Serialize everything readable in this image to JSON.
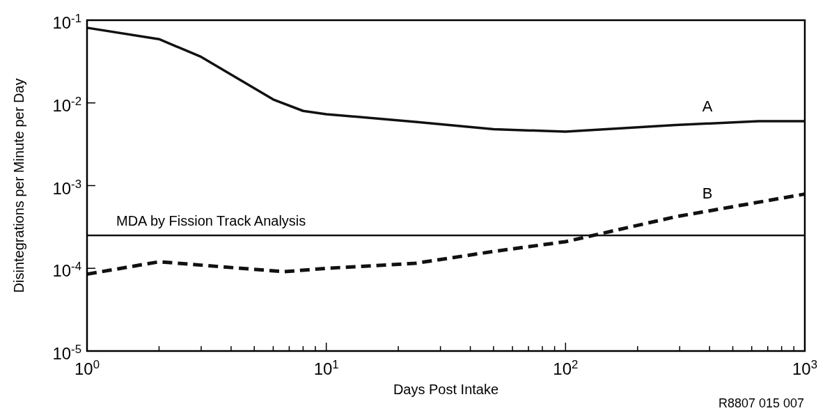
{
  "chart_data": {
    "type": "line",
    "xlabel": "Days Post Intake",
    "ylabel": "Disintegrations per Minute per Day",
    "log": "xy",
    "xlim": [
      1,
      1000
    ],
    "ylim": [
      1e-05,
      0.1
    ],
    "xticks": [
      {
        "value": 1,
        "label": "10$^{0}$"
      },
      {
        "value": 2,
        "label": null
      },
      {
        "value": 3,
        "label": null
      },
      {
        "value": 4,
        "label": null
      },
      {
        "value": 5,
        "label": null
      },
      {
        "value": 6,
        "label": null
      },
      {
        "value": 7,
        "label": null
      },
      {
        "value": 8,
        "label": null
      },
      {
        "value": 9,
        "label": null
      },
      {
        "value": 10,
        "label": "10$^{1}$"
      },
      {
        "value": 20,
        "label": null
      },
      {
        "value": 30,
        "label": null
      },
      {
        "value": 40,
        "label": null
      },
      {
        "value": 50,
        "label": null
      },
      {
        "value": 60,
        "label": null
      },
      {
        "value": 70,
        "label": null
      },
      {
        "value": 80,
        "label": null
      },
      {
        "value": 90,
        "label": null
      },
      {
        "value": 100,
        "label": "10$^{2}$"
      },
      {
        "value": 200,
        "label": null
      },
      {
        "value": 300,
        "label": null
      },
      {
        "value": 400,
        "label": null
      },
      {
        "value": 500,
        "label": null
      },
      {
        "value": 600,
        "label": null
      },
      {
        "value": 700,
        "label": null
      },
      {
        "value": 800,
        "label": null
      },
      {
        "value": 900,
        "label": null
      },
      {
        "value": 1000,
        "label": "10$^{3}$"
      }
    ],
    "yticks": [
      {
        "value": 1e-05,
        "label": "10$^{-5}$"
      },
      {
        "value": 0.0001,
        "label": "10$^{-4}$"
      },
      {
        "value": 0.001,
        "label": "10$^{-3}$"
      },
      {
        "value": 0.01,
        "label": "10$^{-2}$"
      },
      {
        "value": 0.1,
        "label": "10$^{-1}$"
      }
    ],
    "grid": false,
    "series": [
      {
        "color": "#111111",
        "line_style": "solid",
        "x": [
          1,
          2,
          3,
          6,
          8,
          10,
          23.6,
          50,
          100,
          288,
          640,
          1000
        ],
        "values": [
          0.081,
          0.059,
          0.036,
          0.011,
          0.008,
          0.0073,
          0.0059,
          0.0048,
          0.0045,
          0.0054,
          0.006,
          0.006
        ]
      },
      {
        "color": "#111111",
        "line_style": "dashed",
        "x": [
          1,
          2,
          4.4,
          6.7,
          10,
          23.6,
          50,
          100,
          288,
          1000
        ],
        "values": [
          8.5e-05,
          0.00012,
          0.0001,
          9.1e-05,
          0.0001,
          0.000115,
          0.00016,
          0.00021,
          0.00042,
          0.00079
        ]
      }
    ],
    "ref_lines": [
      {
        "axis": "y",
        "value": 0.00025,
        "label": "MDA by Fission Track Analysis",
        "color": "#111111"
      }
    ],
    "annotations": [
      "A",
      "B",
      "R8807 015 007"
    ]
  }
}
